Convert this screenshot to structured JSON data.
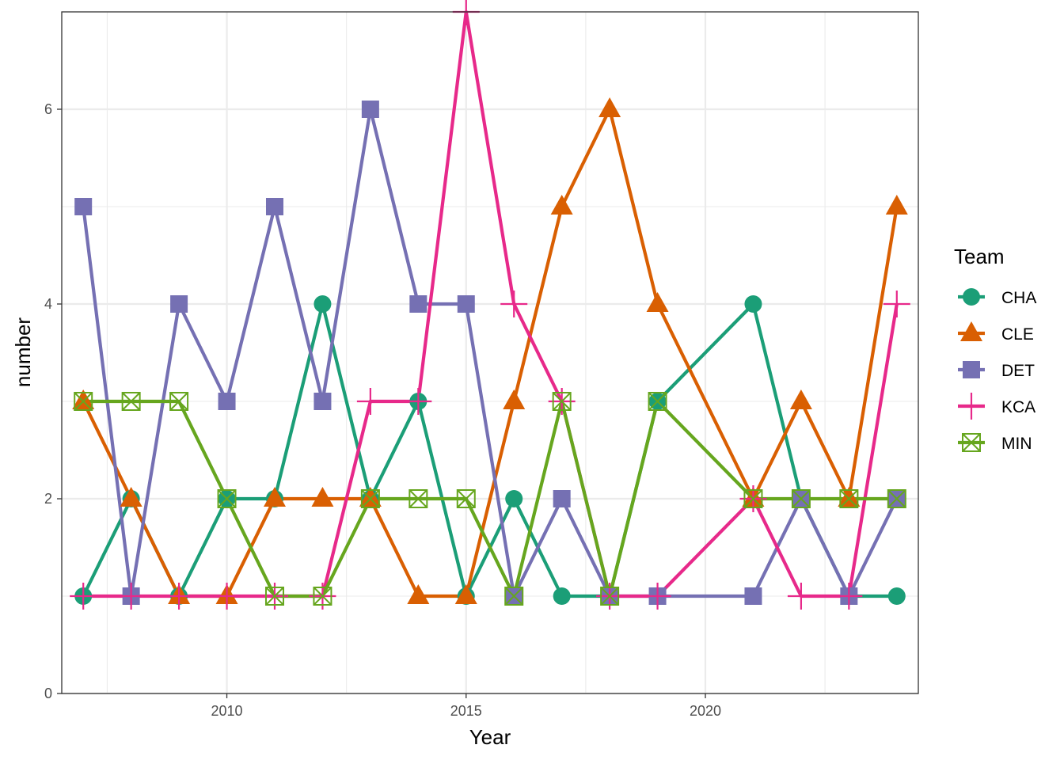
{
  "chart_data": {
    "type": "line",
    "xlabel": "Year",
    "ylabel": "number",
    "xlim": [
      2006.55,
      2024.45
    ],
    "ylim": [
      0,
      7
    ],
    "x_ticks": [
      2010,
      2015,
      2020
    ],
    "y_ticks": [
      0,
      2,
      4,
      6
    ],
    "x_minor_ticks": [
      2007.5,
      2012.5,
      2017.5,
      2022.5
    ],
    "y_minor_ticks": [
      1,
      3,
      5,
      7
    ],
    "grid": true,
    "legend_title": "Team",
    "legend_position": "right",
    "series": [
      {
        "name": "CHA",
        "color": "#1b9e77",
        "marker": "circle",
        "points": [
          [
            2007,
            1
          ],
          [
            2008,
            2
          ],
          [
            2009,
            1
          ],
          [
            2010,
            2
          ],
          [
            2011,
            2
          ],
          [
            2012,
            4
          ],
          [
            2013,
            2
          ],
          [
            2014,
            3
          ],
          [
            2015,
            1
          ],
          [
            2016,
            2
          ],
          [
            2017,
            1
          ],
          [
            2018,
            1
          ],
          [
            2019,
            3
          ],
          [
            2021,
            4
          ],
          [
            2022,
            2
          ],
          [
            2023,
            1
          ],
          [
            2024,
            1
          ]
        ]
      },
      {
        "name": "CLE",
        "color": "#d95f02",
        "marker": "triangle",
        "points": [
          [
            2007,
            3
          ],
          [
            2008,
            2
          ],
          [
            2009,
            1
          ],
          [
            2010,
            1
          ],
          [
            2011,
            2
          ],
          [
            2012,
            2
          ],
          [
            2013,
            2
          ],
          [
            2014,
            1
          ],
          [
            2015,
            1
          ],
          [
            2016,
            3
          ],
          [
            2017,
            5
          ],
          [
            2018,
            6
          ],
          [
            2019,
            4
          ],
          [
            2021,
            2
          ],
          [
            2022,
            3
          ],
          [
            2023,
            2
          ],
          [
            2024,
            5
          ]
        ]
      },
      {
        "name": "DET",
        "color": "#7570b3",
        "marker": "square",
        "points": [
          [
            2007,
            5
          ],
          [
            2008,
            1
          ],
          [
            2009,
            4
          ],
          [
            2010,
            3
          ],
          [
            2011,
            5
          ],
          [
            2012,
            3
          ],
          [
            2013,
            6
          ],
          [
            2014,
            4
          ],
          [
            2015,
            4
          ],
          [
            2016,
            1
          ],
          [
            2017,
            2
          ],
          [
            2018,
            1
          ],
          [
            2019,
            1
          ],
          [
            2021,
            1
          ],
          [
            2022,
            2
          ],
          [
            2023,
            1
          ],
          [
            2024,
            2
          ]
        ]
      },
      {
        "name": "KCA",
        "color": "#e7298a",
        "marker": "plus",
        "points": [
          [
            2007,
            1
          ],
          [
            2008,
            1
          ],
          [
            2009,
            1
          ],
          [
            2010,
            1
          ],
          [
            2011,
            1
          ],
          [
            2012,
            1
          ],
          [
            2013,
            3
          ],
          [
            2014,
            3
          ],
          [
            2015,
            7
          ],
          [
            2016,
            4
          ],
          [
            2017,
            3
          ],
          [
            2018,
            1
          ],
          [
            2019,
            1
          ],
          [
            2021,
            2
          ],
          [
            2022,
            1
          ],
          [
            2023,
            1
          ],
          [
            2024,
            4
          ]
        ]
      },
      {
        "name": "MIN",
        "color": "#66a61e",
        "marker": "boxcross",
        "points": [
          [
            2007,
            3
          ],
          [
            2008,
            3
          ],
          [
            2009,
            3
          ],
          [
            2010,
            2
          ],
          [
            2011,
            1
          ],
          [
            2012,
            1
          ],
          [
            2013,
            2
          ],
          [
            2014,
            2
          ],
          [
            2015,
            2
          ],
          [
            2016,
            1
          ],
          [
            2017,
            3
          ],
          [
            2018,
            1
          ],
          [
            2019,
            3
          ],
          [
            2021,
            2
          ],
          [
            2022,
            2
          ],
          [
            2023,
            2
          ],
          [
            2024,
            2
          ]
        ]
      }
    ]
  }
}
